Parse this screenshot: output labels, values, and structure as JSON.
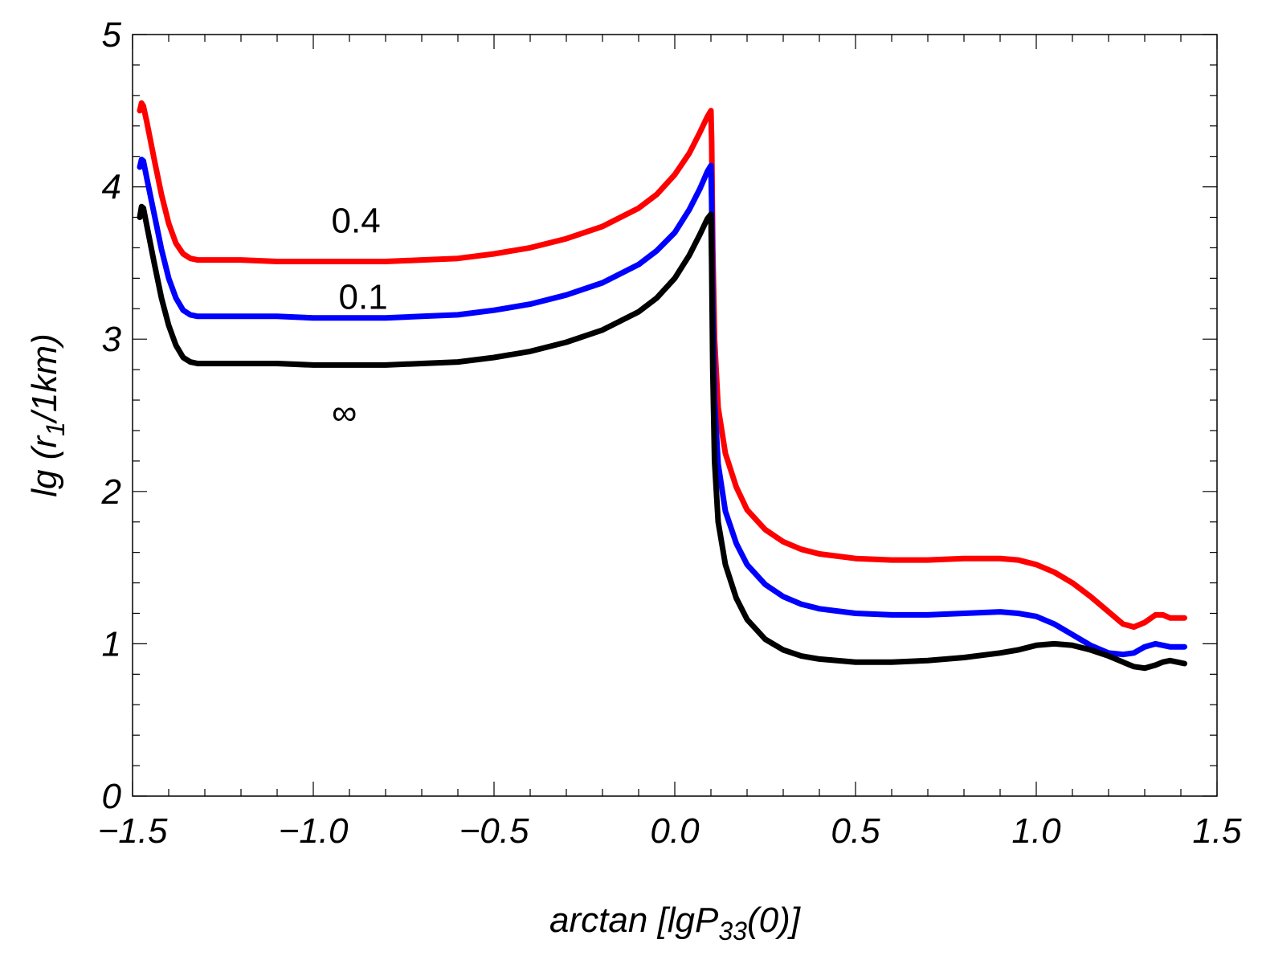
{
  "chart_data": {
    "type": "line",
    "title": "",
    "xlabel": {
      "prefix": "arctan [",
      "main": "lgP",
      "subscript": "33",
      "suffix": "(0)]"
    },
    "ylabel": {
      "prefix": "lg (r",
      "subscript": "1",
      "suffix": "/1km)"
    },
    "xlim": [
      -1.5,
      1.5
    ],
    "ylim": [
      0,
      5
    ],
    "xticks": [
      -1.5,
      -1.0,
      -0.5,
      0.0,
      0.5,
      1.0,
      1.5
    ],
    "xtick_labels": [
      "−1.5",
      "−1.0",
      "−0.5",
      "0.0",
      "0.5",
      "1.0",
      "1.5"
    ],
    "yticks": [
      0,
      1,
      2,
      3,
      4,
      5
    ],
    "ytick_labels": [
      "0",
      "1",
      "2",
      "3",
      "4",
      "5"
    ],
    "x_minor_step": 0.1,
    "y_minor_step": 0.2,
    "series": [
      {
        "name": "0.4",
        "color": "#ff0000",
        "points": [
          [
            -1.48,
            4.5
          ],
          [
            -1.475,
            4.55
          ],
          [
            -1.47,
            4.53
          ],
          [
            -1.46,
            4.42
          ],
          [
            -1.44,
            4.18
          ],
          [
            -1.42,
            3.95
          ],
          [
            -1.4,
            3.76
          ],
          [
            -1.38,
            3.63
          ],
          [
            -1.36,
            3.56
          ],
          [
            -1.34,
            3.53
          ],
          [
            -1.32,
            3.52
          ],
          [
            -1.3,
            3.52
          ],
          [
            -1.2,
            3.52
          ],
          [
            -1.1,
            3.51
          ],
          [
            -1.0,
            3.51
          ],
          [
            -0.9,
            3.51
          ],
          [
            -0.8,
            3.51
          ],
          [
            -0.7,
            3.52
          ],
          [
            -0.6,
            3.53
          ],
          [
            -0.5,
            3.56
          ],
          [
            -0.4,
            3.6
          ],
          [
            -0.3,
            3.66
          ],
          [
            -0.2,
            3.74
          ],
          [
            -0.1,
            3.86
          ],
          [
            -0.05,
            3.95
          ],
          [
            0.0,
            4.08
          ],
          [
            0.04,
            4.22
          ],
          [
            0.07,
            4.36
          ],
          [
            0.09,
            4.46
          ],
          [
            0.1,
            4.5
          ],
          [
            0.102,
            4.3
          ],
          [
            0.105,
            3.6
          ],
          [
            0.11,
            3.0
          ],
          [
            0.12,
            2.55
          ],
          [
            0.14,
            2.25
          ],
          [
            0.17,
            2.03
          ],
          [
            0.2,
            1.88
          ],
          [
            0.25,
            1.75
          ],
          [
            0.3,
            1.67
          ],
          [
            0.35,
            1.62
          ],
          [
            0.4,
            1.59
          ],
          [
            0.5,
            1.56
          ],
          [
            0.6,
            1.55
          ],
          [
            0.7,
            1.55
          ],
          [
            0.8,
            1.56
          ],
          [
            0.9,
            1.56
          ],
          [
            0.95,
            1.55
          ],
          [
            1.0,
            1.52
          ],
          [
            1.05,
            1.47
          ],
          [
            1.1,
            1.4
          ],
          [
            1.15,
            1.31
          ],
          [
            1.2,
            1.21
          ],
          [
            1.24,
            1.13
          ],
          [
            1.27,
            1.11
          ],
          [
            1.3,
            1.14
          ],
          [
            1.33,
            1.19
          ],
          [
            1.35,
            1.19
          ],
          [
            1.37,
            1.17
          ],
          [
            1.41,
            1.17
          ]
        ]
      },
      {
        "name": "0.1",
        "color": "#0000ff",
        "points": [
          [
            -1.48,
            4.13
          ],
          [
            -1.475,
            4.18
          ],
          [
            -1.47,
            4.17
          ],
          [
            -1.46,
            4.05
          ],
          [
            -1.44,
            3.82
          ],
          [
            -1.42,
            3.59
          ],
          [
            -1.4,
            3.4
          ],
          [
            -1.38,
            3.27
          ],
          [
            -1.36,
            3.19
          ],
          [
            -1.34,
            3.16
          ],
          [
            -1.32,
            3.15
          ],
          [
            -1.3,
            3.15
          ],
          [
            -1.2,
            3.15
          ],
          [
            -1.1,
            3.15
          ],
          [
            -1.0,
            3.14
          ],
          [
            -0.9,
            3.14
          ],
          [
            -0.8,
            3.14
          ],
          [
            -0.7,
            3.15
          ],
          [
            -0.6,
            3.16
          ],
          [
            -0.5,
            3.19
          ],
          [
            -0.4,
            3.23
          ],
          [
            -0.3,
            3.29
          ],
          [
            -0.2,
            3.37
          ],
          [
            -0.1,
            3.49
          ],
          [
            -0.05,
            3.58
          ],
          [
            0.0,
            3.7
          ],
          [
            0.04,
            3.85
          ],
          [
            0.07,
            3.99
          ],
          [
            0.09,
            4.1
          ],
          [
            0.1,
            4.14
          ],
          [
            0.102,
            3.9
          ],
          [
            0.105,
            3.2
          ],
          [
            0.11,
            2.6
          ],
          [
            0.12,
            2.18
          ],
          [
            0.14,
            1.87
          ],
          [
            0.17,
            1.66
          ],
          [
            0.2,
            1.52
          ],
          [
            0.25,
            1.39
          ],
          [
            0.3,
            1.31
          ],
          [
            0.35,
            1.26
          ],
          [
            0.4,
            1.23
          ],
          [
            0.5,
            1.2
          ],
          [
            0.6,
            1.19
          ],
          [
            0.7,
            1.19
          ],
          [
            0.8,
            1.2
          ],
          [
            0.9,
            1.21
          ],
          [
            0.95,
            1.2
          ],
          [
            1.0,
            1.18
          ],
          [
            1.05,
            1.13
          ],
          [
            1.1,
            1.06
          ],
          [
            1.15,
            0.99
          ],
          [
            1.2,
            0.94
          ],
          [
            1.24,
            0.93
          ],
          [
            1.27,
            0.94
          ],
          [
            1.3,
            0.98
          ],
          [
            1.33,
            1.0
          ],
          [
            1.35,
            0.99
          ],
          [
            1.37,
            0.98
          ],
          [
            1.41,
            0.98
          ]
        ]
      },
      {
        "name": "∞",
        "color": "#000000",
        "points": [
          [
            -1.48,
            3.8
          ],
          [
            -1.475,
            3.87
          ],
          [
            -1.47,
            3.86
          ],
          [
            -1.46,
            3.74
          ],
          [
            -1.44,
            3.5
          ],
          [
            -1.42,
            3.27
          ],
          [
            -1.4,
            3.09
          ],
          [
            -1.38,
            2.96
          ],
          [
            -1.36,
            2.88
          ],
          [
            -1.34,
            2.85
          ],
          [
            -1.32,
            2.84
          ],
          [
            -1.3,
            2.84
          ],
          [
            -1.2,
            2.84
          ],
          [
            -1.1,
            2.84
          ],
          [
            -1.0,
            2.83
          ],
          [
            -0.9,
            2.83
          ],
          [
            -0.8,
            2.83
          ],
          [
            -0.7,
            2.84
          ],
          [
            -0.6,
            2.85
          ],
          [
            -0.5,
            2.88
          ],
          [
            -0.4,
            2.92
          ],
          [
            -0.3,
            2.98
          ],
          [
            -0.2,
            3.06
          ],
          [
            -0.1,
            3.18
          ],
          [
            -0.05,
            3.27
          ],
          [
            0.0,
            3.4
          ],
          [
            0.04,
            3.55
          ],
          [
            0.07,
            3.69
          ],
          [
            0.09,
            3.79
          ],
          [
            0.1,
            3.82
          ],
          [
            0.102,
            3.5
          ],
          [
            0.105,
            2.8
          ],
          [
            0.11,
            2.2
          ],
          [
            0.12,
            1.8
          ],
          [
            0.14,
            1.52
          ],
          [
            0.17,
            1.3
          ],
          [
            0.2,
            1.16
          ],
          [
            0.25,
            1.03
          ],
          [
            0.3,
            0.96
          ],
          [
            0.35,
            0.92
          ],
          [
            0.4,
            0.9
          ],
          [
            0.5,
            0.88
          ],
          [
            0.6,
            0.88
          ],
          [
            0.7,
            0.89
          ],
          [
            0.8,
            0.91
          ],
          [
            0.9,
            0.94
          ],
          [
            0.95,
            0.96
          ],
          [
            1.0,
            0.99
          ],
          [
            1.05,
            1.0
          ],
          [
            1.1,
            0.99
          ],
          [
            1.15,
            0.96
          ],
          [
            1.2,
            0.92
          ],
          [
            1.24,
            0.88
          ],
          [
            1.27,
            0.85
          ],
          [
            1.3,
            0.84
          ],
          [
            1.33,
            0.86
          ],
          [
            1.35,
            0.88
          ],
          [
            1.37,
            0.89
          ],
          [
            1.41,
            0.87
          ]
        ]
      }
    ],
    "annotations": [
      {
        "text": "0.4",
        "x": -0.95,
        "y": 3.7,
        "italic": false
      },
      {
        "text": "0.1",
        "x": -0.93,
        "y": 3.2,
        "italic": false
      },
      {
        "text": "∞",
        "x": -0.95,
        "y": 2.44,
        "italic": true
      }
    ]
  }
}
